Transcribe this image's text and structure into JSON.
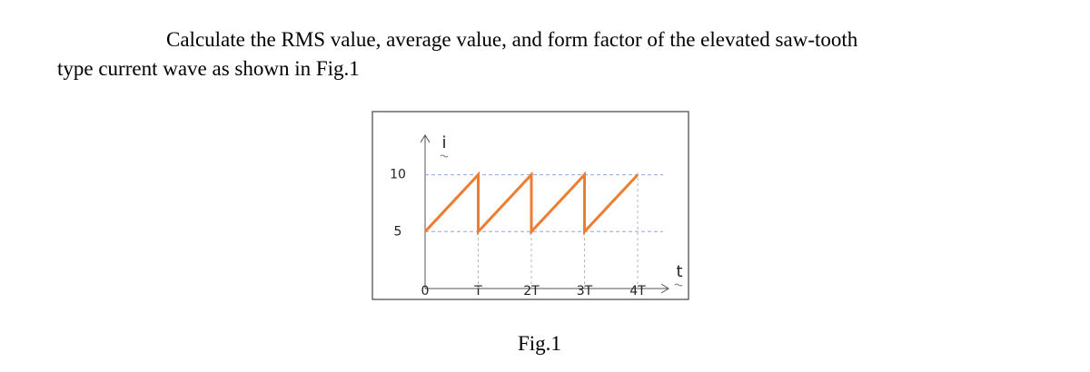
{
  "text": [
    "Calculate the RMS value, average value, and form factor of the elevated saw-tooth",
    "type current wave as shown in Fig.1"
  ],
  "chart_data": {
    "type": "line",
    "ylabel": "i",
    "xlabel": "t",
    "x": [
      0,
      1,
      1,
      2,
      2,
      3,
      3,
      4
    ],
    "series": [
      {
        "color": "#ed7d31",
        "values": [
          5,
          10,
          5,
          10,
          5,
          10,
          5,
          10
        ]
      }
    ],
    "xlim": [
      0,
      4.5
    ],
    "ylim": [
      0,
      13
    ],
    "xticks": [
      0,
      {
        "value": 1,
        "label": "T"
      },
      {
        "value": 2,
        "label": "2T"
      },
      {
        "value": 3,
        "label": "3T"
      },
      {
        "value": 4,
        "label": "4T"
      }
    ],
    "yticks": [
      5,
      10
    ],
    "grid": true
  },
  "caption": "Fig.1"
}
